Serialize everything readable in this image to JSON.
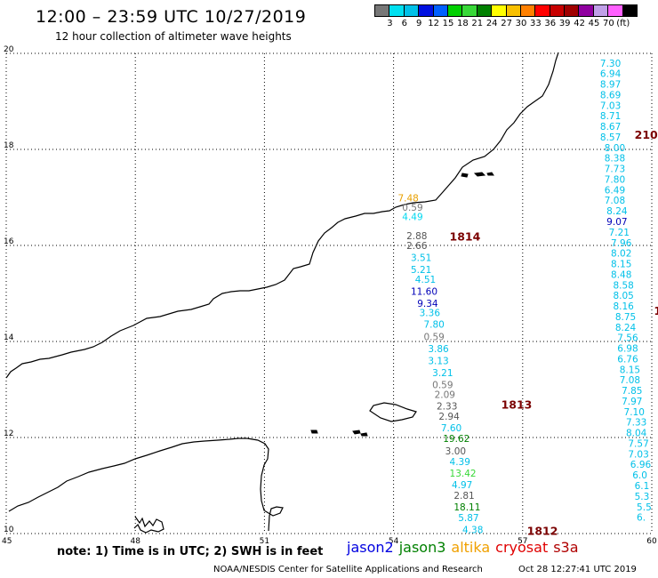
{
  "header": {
    "title": "12:00 – 23:59 UTC 10/27/2019",
    "subtitle": "12 hour collection of altimeter wave heights"
  },
  "colorbar": {
    "colors": [
      "#777777",
      "#00e0f0",
      "#00c0e8",
      "#0010e0",
      "#0060ff",
      "#00d000",
      "#38d838",
      "#008000",
      "#ffff00",
      "#f8c000",
      "#ff8000",
      "#ff0000",
      "#c80000",
      "#a00000",
      "#9000a0",
      "#c0a0e8",
      "#ff60ff",
      "#000000"
    ],
    "labels": [
      "3",
      "6",
      "9",
      "12",
      "15",
      "18",
      "21",
      "24",
      "27",
      "30",
      "33",
      "36",
      "39",
      "42",
      "45",
      "70",
      "(ft)"
    ]
  },
  "map": {
    "lat_ticks": [
      "20",
      "18",
      "16",
      "14",
      "12",
      "10"
    ],
    "lon_ticks": [
      "45",
      "48",
      "51",
      "54",
      "57",
      "60"
    ],
    "lon_range": [
      45,
      60
    ],
    "lat_range": [
      10,
      20
    ],
    "gridlines": "dotted",
    "track_labels": [
      {
        "text": "1814",
        "lon": 55.3,
        "lat": 16.18
      },
      {
        "text": "1813",
        "lon": 56.5,
        "lat": 12.68
      },
      {
        "text": "1812",
        "lon": 57.1,
        "lat": 10.05
      },
      {
        "text": "210",
        "lon": 59.6,
        "lat": 18.3
      },
      {
        "text": "1",
        "lon": 60.05,
        "lat": 14.63
      }
    ],
    "observations": [
      {
        "text": "7.48",
        "lon": 54.1,
        "lat": 16.99,
        "color": "#e8a000"
      },
      {
        "text": "0.59",
        "lon": 54.2,
        "lat": 16.8,
        "color": "#777777"
      },
      {
        "text": "4.49",
        "lon": 54.2,
        "lat": 16.6,
        "color": "#00d8f0"
      },
      {
        "text": "2.88",
        "lon": 54.3,
        "lat": 16.2,
        "color": "#555555"
      },
      {
        "text": "2.66",
        "lon": 54.3,
        "lat": 16.0,
        "color": "#555555"
      },
      {
        "text": "3.51",
        "lon": 54.4,
        "lat": 15.75,
        "color": "#00c0e8"
      },
      {
        "text": "5.21",
        "lon": 54.4,
        "lat": 15.5,
        "color": "#00c0e8"
      },
      {
        "text": "4.51",
        "lon": 54.5,
        "lat": 15.3,
        "color": "#00c0e8"
      },
      {
        "text": "11.60",
        "lon": 54.4,
        "lat": 15.05,
        "color": "#0000b8"
      },
      {
        "text": "9.34",
        "lon": 54.55,
        "lat": 14.8,
        "color": "#0000b8"
      },
      {
        "text": "3.36",
        "lon": 54.6,
        "lat": 14.6,
        "color": "#00c0e8"
      },
      {
        "text": "7.80",
        "lon": 54.7,
        "lat": 14.36,
        "color": "#00c0e8"
      },
      {
        "text": "0.59",
        "lon": 54.7,
        "lat": 14.1,
        "color": "#777777"
      },
      {
        "text": "3.86",
        "lon": 54.8,
        "lat": 13.85,
        "color": "#00c0e8"
      },
      {
        "text": "3.13",
        "lon": 54.8,
        "lat": 13.6,
        "color": "#00c0e8"
      },
      {
        "text": "3.21",
        "lon": 54.9,
        "lat": 13.35,
        "color": "#00c0e8"
      },
      {
        "text": "0.59",
        "lon": 54.9,
        "lat": 13.1,
        "color": "#777777"
      },
      {
        "text": "2.09",
        "lon": 54.95,
        "lat": 12.9,
        "color": "#777777"
      },
      {
        "text": "2.33",
        "lon": 55.0,
        "lat": 12.66,
        "color": "#555555"
      },
      {
        "text": "2.94",
        "lon": 55.05,
        "lat": 12.44,
        "color": "#555555"
      },
      {
        "text": "7.60",
        "lon": 55.1,
        "lat": 12.2,
        "color": "#00c0e8"
      },
      {
        "text": "19.62",
        "lon": 55.15,
        "lat": 11.98,
        "color": "#008000"
      },
      {
        "text": "3.00",
        "lon": 55.2,
        "lat": 11.72,
        "color": "#555555"
      },
      {
        "text": "4.39",
        "lon": 55.3,
        "lat": 11.5,
        "color": "#00c0e8"
      },
      {
        "text": "13.42",
        "lon": 55.3,
        "lat": 11.26,
        "color": "#38d838"
      },
      {
        "text": "4.97",
        "lon": 55.35,
        "lat": 11.02,
        "color": "#00c0e8"
      },
      {
        "text": "2.81",
        "lon": 55.4,
        "lat": 10.8,
        "color": "#555555"
      },
      {
        "text": "18.11",
        "lon": 55.4,
        "lat": 10.56,
        "color": "#008000"
      },
      {
        "text": "5.87",
        "lon": 55.5,
        "lat": 10.33,
        "color": "#00c0e8"
      },
      {
        "text": "4.38",
        "lon": 55.6,
        "lat": 10.08,
        "color": "#00c0e8"
      },
      {
        "text": "7.30",
        "lon": 58.8,
        "lat": 19.8,
        "color": "#00c0e8"
      },
      {
        "text": "6.94",
        "lon": 58.8,
        "lat": 19.58,
        "color": "#00c0e8"
      },
      {
        "text": "8.97",
        "lon": 58.8,
        "lat": 19.36,
        "color": "#00c0e8"
      },
      {
        "text": "8.69",
        "lon": 58.8,
        "lat": 19.14,
        "color": "#00c0e8"
      },
      {
        "text": "7.03",
        "lon": 58.8,
        "lat": 18.92,
        "color": "#00c0e8"
      },
      {
        "text": "8.71",
        "lon": 58.8,
        "lat": 18.7,
        "color": "#00c0e8"
      },
      {
        "text": "8.67",
        "lon": 58.8,
        "lat": 18.48,
        "color": "#00c0e8"
      },
      {
        "text": "8.57",
        "lon": 58.8,
        "lat": 18.26,
        "color": "#00c0e8"
      },
      {
        "text": "8.00",
        "lon": 58.9,
        "lat": 18.04,
        "color": "#00c0e8"
      },
      {
        "text": "8.38",
        "lon": 58.9,
        "lat": 17.82,
        "color": "#00c0e8"
      },
      {
        "text": "7.73",
        "lon": 58.9,
        "lat": 17.6,
        "color": "#00c0e8"
      },
      {
        "text": "7.80",
        "lon": 58.9,
        "lat": 17.38,
        "color": "#00c0e8"
      },
      {
        "text": "6.49",
        "lon": 58.9,
        "lat": 17.16,
        "color": "#00c0e8"
      },
      {
        "text": "7.08",
        "lon": 58.9,
        "lat": 16.94,
        "color": "#00c0e8"
      },
      {
        "text": "8.24",
        "lon": 58.95,
        "lat": 16.72,
        "color": "#00c0e8"
      },
      {
        "text": "9.07",
        "lon": 58.95,
        "lat": 16.5,
        "color": "#0000b8"
      },
      {
        "text": "7.21",
        "lon": 59.0,
        "lat": 16.28,
        "color": "#00c0e8"
      },
      {
        "text": "7.96",
        "lon": 59.05,
        "lat": 16.06,
        "color": "#00c0e8"
      },
      {
        "text": "8.02",
        "lon": 59.05,
        "lat": 15.84,
        "color": "#00c0e8"
      },
      {
        "text": "8.15",
        "lon": 59.05,
        "lat": 15.62,
        "color": "#00c0e8"
      },
      {
        "text": "8.48",
        "lon": 59.05,
        "lat": 15.4,
        "color": "#00c0e8"
      },
      {
        "text": "8.58",
        "lon": 59.1,
        "lat": 15.18,
        "color": "#00c0e8"
      },
      {
        "text": "8.05",
        "lon": 59.1,
        "lat": 14.96,
        "color": "#00c0e8"
      },
      {
        "text": "8.16",
        "lon": 59.1,
        "lat": 14.74,
        "color": "#00c0e8"
      },
      {
        "text": "8.75",
        "lon": 59.15,
        "lat": 14.52,
        "color": "#00c0e8"
      },
      {
        "text": "8.24",
        "lon": 59.15,
        "lat": 14.3,
        "color": "#00c0e8"
      },
      {
        "text": "7.56",
        "lon": 59.2,
        "lat": 14.08,
        "color": "#00c0e8"
      },
      {
        "text": "6.98",
        "lon": 59.2,
        "lat": 13.86,
        "color": "#00c0e8"
      },
      {
        "text": "6.76",
        "lon": 59.2,
        "lat": 13.64,
        "color": "#00c0e8"
      },
      {
        "text": "8.15",
        "lon": 59.25,
        "lat": 13.42,
        "color": "#00c0e8"
      },
      {
        "text": "7.08",
        "lon": 59.25,
        "lat": 13.2,
        "color": "#00c0e8"
      },
      {
        "text": "7.85",
        "lon": 59.3,
        "lat": 12.98,
        "color": "#00c0e8"
      },
      {
        "text": "7.97",
        "lon": 59.3,
        "lat": 12.76,
        "color": "#00c0e8"
      },
      {
        "text": "7.10",
        "lon": 59.35,
        "lat": 12.54,
        "color": "#00c0e8"
      },
      {
        "text": "7.33",
        "lon": 59.4,
        "lat": 12.32,
        "color": "#00c0e8"
      },
      {
        "text": "8.04",
        "lon": 59.4,
        "lat": 12.1,
        "color": "#00c0e8"
      },
      {
        "text": "7.57",
        "lon": 59.45,
        "lat": 11.88,
        "color": "#00c0e8"
      },
      {
        "text": "7.03",
        "lon": 59.45,
        "lat": 11.66,
        "color": "#00c0e8"
      },
      {
        "text": "6.96",
        "lon": 59.5,
        "lat": 11.44,
        "color": "#00c0e8"
      },
      {
        "text": "6.0",
        "lon": 59.55,
        "lat": 11.22,
        "color": "#00c0e8"
      },
      {
        "text": "6.1",
        "lon": 59.6,
        "lat": 11.0,
        "color": "#00c0e8"
      },
      {
        "text": "5.3",
        "lon": 59.6,
        "lat": 10.78,
        "color": "#00c0e8"
      },
      {
        "text": "5.5",
        "lon": 59.65,
        "lat": 10.56,
        "color": "#00c0e8"
      },
      {
        "text": "6.",
        "lon": 59.65,
        "lat": 10.34,
        "color": "#00c0e8"
      }
    ]
  },
  "footer": {
    "note": "note: 1) Time is in UTC; 2) SWH is in feet",
    "legend": [
      {
        "text": "jason2",
        "color": "#0000e0"
      },
      {
        "text": "jason3",
        "color": "#008000"
      },
      {
        "text": "altika",
        "color": "#f0a000"
      },
      {
        "text": "cryosat",
        "color": "#e00000"
      },
      {
        "text": "s3a",
        "color": "#b00000"
      }
    ],
    "credit": "NOAA/NESDIS Center for Satellite Applications and Research",
    "timestamp": "Oct 28 12:27:41 UTC 2019"
  }
}
